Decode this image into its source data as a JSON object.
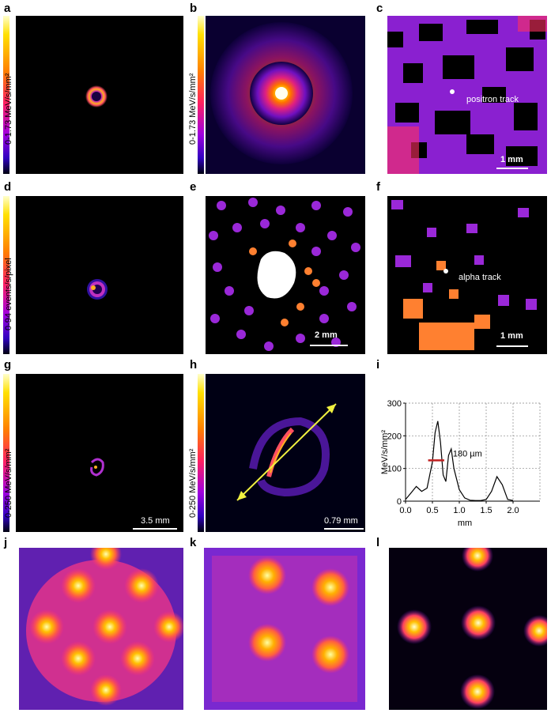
{
  "panels": {
    "a": {
      "letter": "a",
      "colorbar_label": "0-1.73 MeV/s/mm²"
    },
    "b": {
      "letter": "b",
      "colorbar_label": "0-1.73 MeV/s/mm²"
    },
    "c": {
      "letter": "c",
      "annotation": "positron track",
      "scale": "1 mm"
    },
    "d": {
      "letter": "d",
      "colorbar_label": "0-94 events/s/pixel"
    },
    "e": {
      "letter": "e",
      "scale": "2 mm"
    },
    "f": {
      "letter": "f",
      "annotation": "alpha track",
      "scale": "1 mm"
    },
    "g": {
      "letter": "g",
      "colorbar_label": "0-250 MeV/s/mm²",
      "scale": "3.5 mm"
    },
    "h": {
      "letter": "h",
      "colorbar_label": "0-250 MeV/s/mm²",
      "scale": "0.79 mm"
    },
    "i": {
      "letter": "i"
    },
    "j": {
      "letter": "j"
    },
    "k": {
      "letter": "k"
    },
    "l": {
      "letter": "l"
    }
  },
  "chart_data": {
    "type": "line",
    "xlabel": "mm",
    "ylabel": "MeV/s/mm²",
    "xlim": [
      0,
      2.5
    ],
    "ylim": [
      0,
      300
    ],
    "xticks": [
      "0.0",
      "0.5",
      "1.0",
      "1.5",
      "2.0"
    ],
    "yticks": [
      "0",
      "100",
      "200",
      "300"
    ],
    "grid": true,
    "annotation": "180 µm",
    "series": [
      {
        "x": [
          0.0,
          0.1,
          0.2,
          0.3,
          0.4,
          0.5,
          0.55,
          0.6,
          0.65,
          0.7,
          0.75,
          0.8,
          0.85,
          0.9,
          1.0,
          1.1,
          1.2,
          1.3,
          1.4,
          1.5,
          1.6,
          1.7,
          1.8,
          1.9,
          2.0
        ],
        "values": [
          5,
          25,
          45,
          30,
          40,
          120,
          210,
          245,
          180,
          80,
          60,
          140,
          160,
          100,
          35,
          10,
          3,
          2,
          2,
          5,
          30,
          75,
          50,
          5,
          2
        ]
      }
    ],
    "fwhm_marker": {
      "x": [
        0.42,
        0.72
      ],
      "y": 125
    }
  }
}
